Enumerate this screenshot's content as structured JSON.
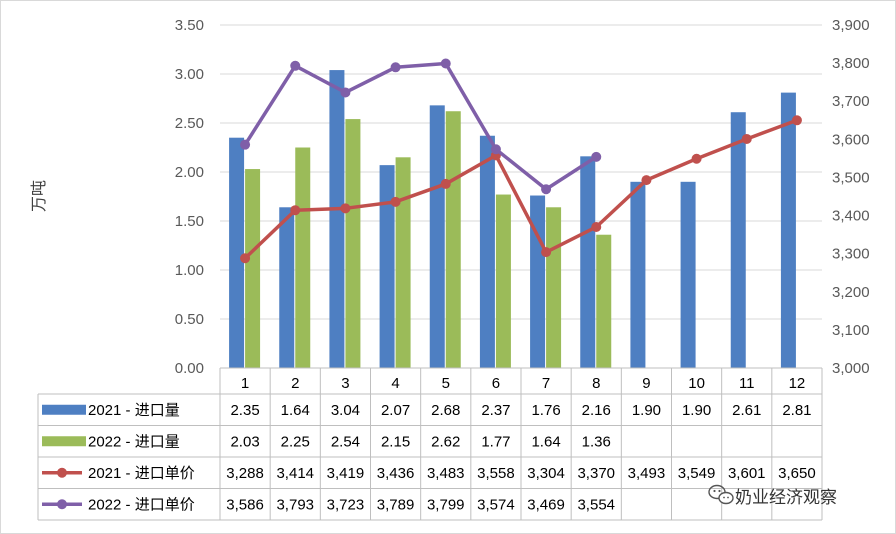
{
  "chart_data": {
    "type": "bar",
    "title": "",
    "ylabel": "万吨",
    "ylim": [
      0,
      3.5
    ],
    "y_ticks": [
      "0.00",
      "0.50",
      "1.00",
      "1.50",
      "2.00",
      "2.50",
      "3.00",
      "3.50"
    ],
    "y2lim": [
      3000,
      3900
    ],
    "y2_ticks": [
      "3,000",
      "3,100",
      "3,200",
      "3,300",
      "3,400",
      "3,500",
      "3,600",
      "3,700",
      "3,800",
      "3,900"
    ],
    "categories": [
      "1",
      "2",
      "3",
      "4",
      "5",
      "6",
      "7",
      "8",
      "9",
      "10",
      "11",
      "12"
    ],
    "series": [
      {
        "name": "2021 - 进口量",
        "kind": "bar",
        "axis": "left",
        "color": "#4e7fc2",
        "values": [
          2.35,
          1.64,
          3.04,
          2.07,
          2.68,
          2.37,
          1.76,
          2.16,
          1.9,
          1.9,
          2.61,
          2.81
        ],
        "labels": [
          "2.35",
          "1.64",
          "3.04",
          "2.07",
          "2.68",
          "2.37",
          "1.76",
          "2.16",
          "1.90",
          "1.90",
          "2.61",
          "2.81"
        ]
      },
      {
        "name": "2022 - 进口量",
        "kind": "bar",
        "axis": "left",
        "color": "#9bbb59",
        "values": [
          2.03,
          2.25,
          2.54,
          2.15,
          2.62,
          1.77,
          1.64,
          1.36,
          null,
          null,
          null,
          null
        ],
        "labels": [
          "2.03",
          "2.25",
          "2.54",
          "2.15",
          "2.62",
          "1.77",
          "1.64",
          "1.36",
          "",
          "",
          "",
          ""
        ]
      },
      {
        "name": "2021 - 进口单价",
        "kind": "line",
        "axis": "right",
        "color": "#c0504d",
        "values": [
          3288,
          3414,
          3419,
          3436,
          3483,
          3558,
          3304,
          3370,
          3493,
          3549,
          3601,
          3650
        ],
        "labels": [
          "3,288",
          "3,414",
          "3,419",
          "3,436",
          "3,483",
          "3,558",
          "3,304",
          "3,370",
          "3,493",
          "3,549",
          "3,601",
          "3,650"
        ]
      },
      {
        "name": "2022 - 进口单价",
        "kind": "line",
        "axis": "right",
        "color": "#7f5fa8",
        "values": [
          3586,
          3793,
          3723,
          3789,
          3799,
          3574,
          3469,
          3554,
          null,
          null,
          null,
          null
        ],
        "labels": [
          "3,586",
          "3,793",
          "3,723",
          "3,789",
          "3,799",
          "3,574",
          "3,469",
          "3,554",
          "",
          "",
          "",
          ""
        ]
      }
    ],
    "data_table": true,
    "grid": true
  },
  "watermark": {
    "text": "奶业经济观察",
    "icon": "wechat-icon"
  }
}
